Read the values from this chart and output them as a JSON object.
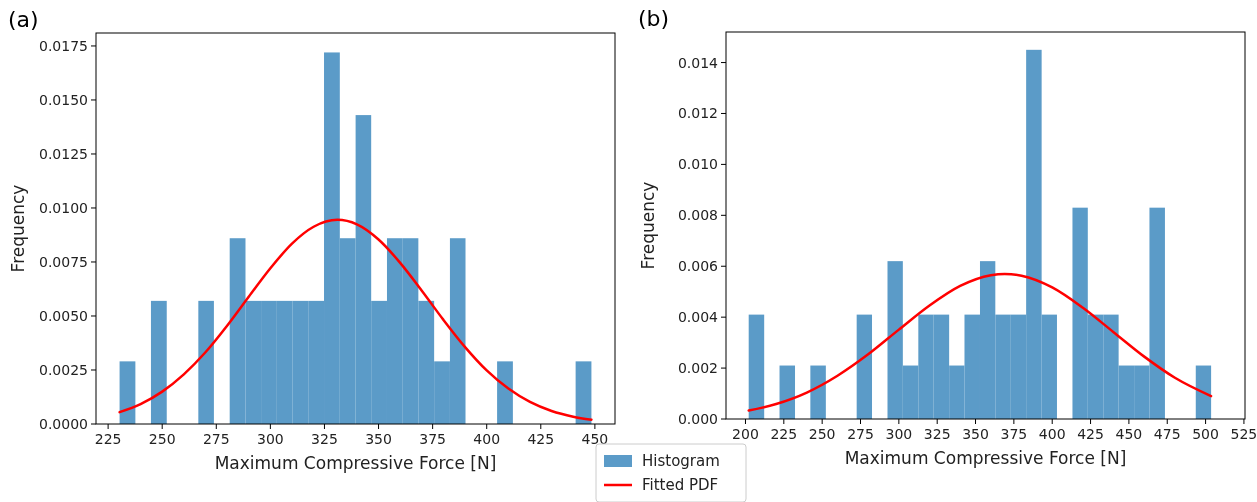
{
  "chart_data": [
    {
      "type": "histogram",
      "title": "(a)",
      "xlabel": "Maximum Compressive Force [N]",
      "ylabel": "Frequency",
      "bins": [
        230.3,
        237.6,
        244.8,
        252.1,
        259.4,
        266.7,
        273.9,
        281.2,
        288.5,
        295.7,
        303.0,
        310.3,
        317.5,
        324.8,
        332.1,
        339.4,
        346.6,
        353.9,
        361.2,
        368.4,
        375.7,
        383.0,
        390.2,
        397.5,
        404.8,
        412.1,
        419.3,
        426.6,
        433.9,
        441.1,
        448.4
      ],
      "series": [
        {
          "name": "Histogram",
          "color": "#5b9bc8",
          "values": [
            0.0029,
            0,
            0.0057,
            0,
            0,
            0.0057,
            0,
            0.0086,
            0.0057,
            0.0057,
            0.0057,
            0.0057,
            0.0057,
            0.0172,
            0.0086,
            0.0143,
            0.0057,
            0.0086,
            0.0086,
            0.0057,
            0.0029,
            0.0086,
            0,
            0,
            0.0029,
            0,
            0,
            0,
            0,
            0.0029
          ]
        },
        {
          "name": "Fitted PDF",
          "type": "line",
          "color": "#ff0000",
          "x": [
            230.3,
            240,
            250,
            260,
            270,
            280,
            290,
            300,
            310,
            320,
            331,
            340,
            350,
            360,
            370,
            380,
            390,
            400,
            410,
            420,
            430,
            440,
            448.4
          ],
          "values": [
            0.00055,
            0.00092,
            0.0015,
            0.0023,
            0.00332,
            0.00455,
            0.00589,
            0.00721,
            0.00835,
            0.00913,
            0.00945,
            0.00924,
            0.00854,
            0.00746,
            0.00617,
            0.00482,
            0.00356,
            0.00248,
            0.00164,
            0.00102,
            0.0006,
            0.00034,
            0.0002
          ]
        }
      ],
      "xlim": [
        219.4,
        459.3
      ],
      "xticks": [
        225,
        250,
        275,
        300,
        325,
        350,
        375,
        400,
        425,
        450
      ],
      "ylim": [
        0,
        0.0181
      ],
      "yticks": [
        {
          "value": 0,
          "label": "0.0000"
        },
        0.0025,
        {
          "value": 0.005,
          "label": "0.0050"
        },
        0.0075,
        {
          "value": 0.01,
          "label": "0.0100"
        },
        0.0125,
        {
          "value": 0.015,
          "label": "0.0150"
        },
        0.0175
      ],
      "legend": "bottom right"
    },
    {
      "type": "histogram",
      "title": "(b)",
      "xlabel": "Maximum Compressive Force [N]",
      "ylabel": "Frequency",
      "bins": [
        202.1,
        212.2,
        222.2,
        232.3,
        242.3,
        252.4,
        262.4,
        272.5,
        282.5,
        292.6,
        302.6,
        312.7,
        322.7,
        332.8,
        342.8,
        352.9,
        362.9,
        373.0,
        383.0,
        393.1,
        403.1,
        413.2,
        423.2,
        433.3,
        443.3,
        453.4,
        463.4,
        473.5,
        483.5,
        493.6,
        503.6
      ],
      "series": [
        {
          "color": "#5b9bc8",
          "values": [
            0.0041,
            0,
            0.0021,
            0,
            0.0021,
            0,
            0,
            0.0041,
            0,
            0.0062,
            0.0021,
            0.0041,
            0.0041,
            0.0021,
            0.0041,
            0.0062,
            0.0041,
            0.0041,
            0.0145,
            0.0041,
            0,
            0.0083,
            0.0041,
            0.0041,
            0.0021,
            0.0021,
            0.0083,
            0,
            0,
            0.0021
          ]
        },
        {
          "type": "line",
          "color": "#ff0000",
          "x": [
            202.1,
            220,
            240,
            260,
            280,
            300,
            320,
            340,
            360,
            369,
            380,
            400,
            420,
            440,
            460,
            480,
            503.6
          ],
          "values": [
            0.00033,
            0.00059,
            0.00104,
            0.0017,
            0.00254,
            0.00351,
            0.00446,
            0.00523,
            0.00565,
            0.0057,
            0.00563,
            0.00517,
            0.00437,
            0.00341,
            0.00245,
            0.00162,
            0.0009
          ]
        }
      ],
      "xlim": [
        187.3,
        525.7
      ],
      "xticks": [
        200,
        225,
        250,
        275,
        300,
        325,
        350,
        375,
        400,
        425,
        450,
        475,
        500,
        525
      ],
      "ylim": [
        0,
        0.0152
      ],
      "yticks": [
        {
          "value": 0,
          "label": "0.000"
        },
        0.002,
        0.004,
        0.006,
        0.008,
        {
          "value": 0.01,
          "label": "0.010"
        },
        0.012,
        0.014
      ]
    }
  ]
}
